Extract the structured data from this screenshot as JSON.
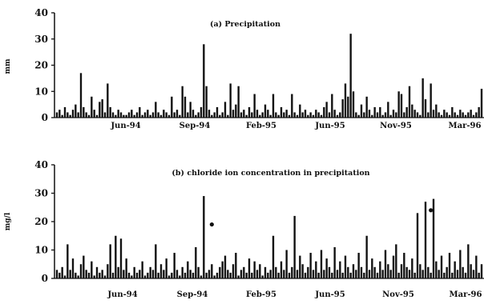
{
  "chart_data": [
    {
      "type": "bar",
      "title": "(a) Precipitation",
      "ylabel": "mm",
      "xlabel": "",
      "ylim": [
        0,
        40
      ],
      "yticks": [
        0,
        10,
        20,
        30,
        40
      ],
      "x_tick_labels": [
        "Jun-94",
        "Sep-94",
        "Feb-95",
        "Jun-95",
        "Nov-95",
        "Mar-96"
      ],
      "grid": false,
      "legend": "none",
      "color": "#111111",
      "x": [
        1,
        2,
        3,
        4,
        5,
        6,
        7,
        8,
        9,
        10,
        11,
        12,
        13,
        14,
        15,
        16,
        17,
        18,
        19,
        20,
        21,
        22,
        23,
        24,
        25,
        26,
        27,
        28,
        29,
        30,
        31,
        32,
        33,
        34,
        35,
        36,
        37,
        38,
        39,
        40,
        41,
        42,
        43,
        44,
        45,
        46,
        47,
        48,
        49,
        50,
        51,
        52,
        53,
        54,
        55,
        56,
        57,
        58,
        59,
        60,
        61,
        62,
        63,
        64,
        65,
        66,
        67,
        68,
        69,
        70,
        71,
        72,
        73,
        74,
        75,
        76,
        77,
        78,
        79,
        80,
        81,
        82,
        83,
        84,
        85,
        86,
        87,
        88,
        89,
        90,
        91,
        92,
        93,
        94,
        95,
        96,
        97,
        98,
        99,
        100,
        101,
        102,
        103,
        104,
        105,
        106,
        107,
        108,
        109,
        110,
        111,
        112,
        113,
        114,
        115,
        116,
        117,
        118,
        119,
        120,
        121,
        122,
        123,
        124,
        125,
        126,
        127,
        128,
        129,
        130,
        131,
        132,
        133,
        134,
        135,
        136,
        137,
        138,
        139,
        140,
        141,
        142,
        143,
        144,
        145,
        146,
        147,
        148,
        149,
        150,
        151,
        152,
        153,
        154,
        155,
        156,
        157,
        158,
        159,
        160
      ],
      "values": [
        2,
        3,
        1,
        4,
        2,
        1,
        3,
        5,
        2,
        17,
        4,
        2,
        1,
        8,
        3,
        1,
        6,
        7,
        2,
        13,
        4,
        2,
        1,
        3,
        2,
        1,
        1,
        2,
        3,
        1,
        2,
        4,
        1,
        2,
        3,
        1,
        2,
        6,
        2,
        1,
        3,
        2,
        1,
        8,
        2,
        3,
        1,
        12,
        8,
        2,
        6,
        3,
        1,
        2,
        4,
        28,
        12,
        3,
        1,
        2,
        4,
        1,
        2,
        6,
        1,
        13,
        3,
        5,
        12,
        2,
        3,
        1,
        4,
        2,
        9,
        3,
        1,
        2,
        5,
        3,
        1,
        9,
        2,
        1,
        4,
        2,
        3,
        1,
        9,
        2,
        1,
        5,
        2,
        3,
        1,
        2,
        1,
        3,
        2,
        1,
        4,
        6,
        2,
        9,
        3,
        1,
        2,
        7,
        13,
        8,
        32,
        10,
        2,
        1,
        5,
        2,
        8,
        3,
        1,
        4,
        2,
        4,
        1,
        2,
        6,
        1,
        3,
        2,
        10,
        9,
        2,
        4,
        12,
        5,
        3,
        2,
        1,
        15,
        7,
        2,
        13,
        3,
        5,
        2,
        1,
        3,
        2,
        1,
        4,
        2,
        1,
        3,
        2,
        1,
        2,
        3,
        1,
        2,
        4,
        11
      ]
    },
    {
      "type": "bar",
      "title": "(b) chloride ion concentration in precipitation",
      "ylabel": "mg/l",
      "xlabel": "",
      "ylim": [
        0,
        40
      ],
      "yticks": [
        0,
        10,
        20,
        30,
        40
      ],
      "x_tick_labels": [
        "Jun-94",
        "Sep-94",
        "Feb-95",
        "Jun-95",
        "Nov-95",
        "Mar-96"
      ],
      "grid": false,
      "legend": "none",
      "color": "#111111",
      "x": [
        1,
        2,
        3,
        4,
        5,
        6,
        7,
        8,
        9,
        10,
        11,
        12,
        13,
        14,
        15,
        16,
        17,
        18,
        19,
        20,
        21,
        22,
        23,
        24,
        25,
        26,
        27,
        28,
        29,
        30,
        31,
        32,
        33,
        34,
        35,
        36,
        37,
        38,
        39,
        40,
        41,
        42,
        43,
        44,
        45,
        46,
        47,
        48,
        49,
        50,
        51,
        52,
        53,
        54,
        55,
        56,
        57,
        58,
        59,
        60,
        61,
        62,
        63,
        64,
        65,
        66,
        67,
        68,
        69,
        70,
        71,
        72,
        73,
        74,
        75,
        76,
        77,
        78,
        79,
        80,
        81,
        82,
        83,
        84,
        85,
        86,
        87,
        88,
        89,
        90,
        91,
        92,
        93,
        94,
        95,
        96,
        97,
        98,
        99,
        100,
        101,
        102,
        103,
        104,
        105,
        106,
        107,
        108,
        109,
        110,
        111,
        112,
        113,
        114,
        115,
        116,
        117,
        118,
        119,
        120,
        121,
        122,
        123,
        124,
        125,
        126,
        127,
        128,
        129,
        130,
        131,
        132,
        133,
        134,
        135,
        136,
        137,
        138,
        139,
        140,
        141,
        142,
        143,
        144,
        145,
        146,
        147,
        148,
        149,
        150,
        151,
        152,
        153,
        154,
        155,
        156,
        157,
        158,
        159,
        160
      ],
      "values": [
        3,
        2,
        4,
        1,
        12,
        3,
        7,
        2,
        1,
        5,
        8,
        3,
        2,
        6,
        1,
        4,
        2,
        3,
        1,
        5,
        12,
        2,
        15,
        4,
        14,
        3,
        7,
        2,
        1,
        4,
        2,
        3,
        6,
        1,
        2,
        4,
        3,
        12,
        2,
        5,
        3,
        7,
        1,
        2,
        9,
        3,
        1,
        4,
        2,
        6,
        3,
        2,
        11,
        4,
        1,
        29,
        2,
        3,
        5,
        1,
        2,
        4,
        6,
        8,
        3,
        2,
        5,
        9,
        1,
        3,
        4,
        2,
        7,
        2,
        6,
        3,
        5,
        1,
        4,
        2,
        3,
        15,
        4,
        2,
        6,
        3,
        10,
        2,
        4,
        22,
        3,
        8,
        5,
        2,
        4,
        9,
        3,
        6,
        2,
        10,
        3,
        7,
        4,
        2,
        11,
        3,
        6,
        2,
        8,
        4,
        2,
        5,
        3,
        9,
        4,
        2,
        15,
        3,
        7,
        4,
        2,
        6,
        3,
        10,
        5,
        3,
        8,
        12,
        2,
        5,
        9,
        4,
        3,
        7,
        2,
        23,
        5,
        3,
        27,
        4,
        2,
        28,
        6,
        3,
        8,
        2,
        4,
        9,
        2,
        6,
        3,
        10,
        4,
        2,
        12,
        5,
        3,
        8,
        2,
        5
      ],
      "annotations": [
        {
          "type": "dot",
          "x": 59,
          "y": 19
        },
        {
          "type": "dot",
          "x": 141,
          "y": 24
        }
      ]
    }
  ]
}
